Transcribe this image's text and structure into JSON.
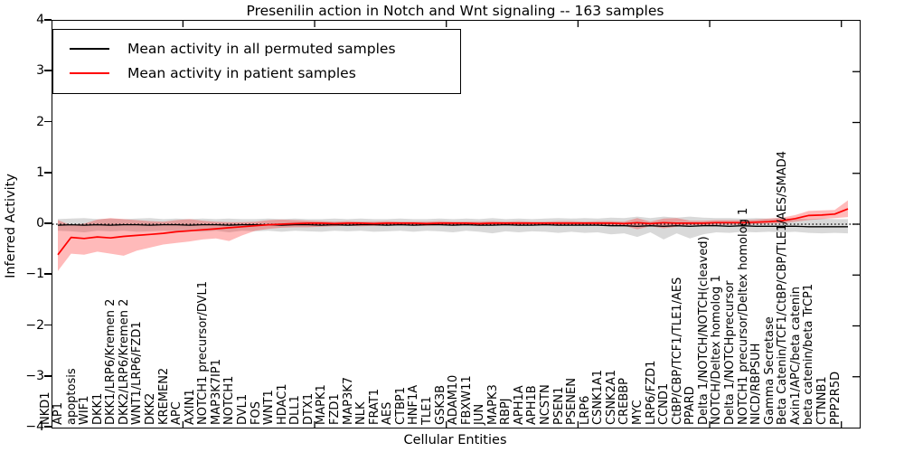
{
  "figure": {
    "title": "Presenilin action in Notch and Wnt signaling -- 163 samples"
  },
  "legend": {
    "entries": [
      {
        "label": "Mean activity in all permuted samples",
        "color": "#000000"
      },
      {
        "label": "Mean activity in patient samples",
        "color": "#ff0000"
      }
    ],
    "position": "upper left"
  },
  "chart_data": {
    "type": "line",
    "title": "Presenilin action in Notch and Wnt signaling -- 163 samples",
    "xlabel": "Cellular Entities",
    "ylabel": "Inferred Activity",
    "ylim": [
      -4,
      4
    ],
    "ytick_labels": [
      "4",
      "3",
      "2",
      "1",
      "0",
      "−1",
      "−2",
      "−3",
      "−4"
    ],
    "ytick_values": [
      4,
      3,
      2,
      1,
      0,
      -1,
      -2,
      -3,
      -4
    ],
    "xtick_positions": [
      9.5,
      19.5,
      29.5,
      39.5,
      49.5,
      59.5
    ],
    "grid": false,
    "zero_reference_line": true,
    "legend_position": "upper left",
    "categories": [
      "NKD1",
      "AP1",
      "apoptosis",
      "WIF1",
      "DKK1",
      "DKK1/LRP6/Kremen 2",
      "DKK2/LRP6/Kremen 2",
      "WNT1/LRP6/FZD1",
      "DKK2",
      "KREMEN2",
      "APC",
      "AXIN1",
      "NOTCH1 precursor/DVL1",
      "MAP3K7IP1",
      "NOTCH1",
      "DVL1",
      "FOS",
      "WNT1",
      "HDAC1",
      "DLL1",
      "DTX1",
      "MAPK1",
      "FZD1",
      "MAP3K7",
      "NLK",
      "FRAT1",
      "AES",
      "CTBP1",
      "HNF1A",
      "TLE1",
      "GSK3B",
      "ADAM10",
      "FBXW11",
      "JUN",
      "MAPK3",
      "RBPJ",
      "APH1A",
      "APH1B",
      "NCSTN",
      "PSEN1",
      "PSENEN",
      "LRP6",
      "CSNK1A1",
      "CSNK2A1",
      "CREBBP",
      "MYC",
      "LRP6/FZD1",
      "CCND1",
      "CtBP/CBP/TCF1/TLE1/AES",
      "PPARD",
      "Delta 1/NOTCH/NOTCH(cleaved)",
      "NOTCH/Deltex homolog 1",
      "Delta 1/NOTCHprecursor",
      "NOTCH1 precursor/Deltex homolog 1",
      "NICD/RBPSUH",
      "Gamma Secretase",
      "Beta Catenin/TCF1/CtBP/CBP/TLE1/AES/SMAD4",
      "Axin1/APC/beta catenin",
      "beta catenin/beta TrCP1",
      "CTNNB1",
      "PPP2R5D"
    ],
    "series": [
      {
        "name": "Mean activity in all permuted samples",
        "color": "#000000",
        "band_opacity": 0.15,
        "values": [
          -0.02,
          -0.01,
          -0.02,
          -0.01,
          -0.02,
          -0.01,
          -0.01,
          -0.02,
          -0.01,
          -0.01,
          -0.02,
          -0.01,
          -0.01,
          -0.02,
          -0.01,
          -0.01,
          -0.01,
          -0.02,
          -0.01,
          -0.01,
          -0.02,
          -0.01,
          -0.02,
          -0.01,
          -0.01,
          -0.02,
          -0.01,
          -0.02,
          -0.01,
          -0.01,
          -0.02,
          -0.01,
          -0.02,
          -0.02,
          -0.01,
          -0.02,
          -0.02,
          -0.01,
          -0.02,
          -0.02,
          -0.02,
          -0.02,
          -0.03,
          -0.03,
          -0.04,
          -0.03,
          -0.04,
          -0.03,
          -0.04,
          -0.03,
          -0.03,
          -0.04,
          -0.03,
          -0.04,
          -0.04,
          -0.04,
          -0.04,
          -0.05,
          -0.05,
          -0.05,
          -0.05
        ],
        "band_hi": [
          0.1,
          0.11,
          0.12,
          0.1,
          0.11,
          0.1,
          0.11,
          0.12,
          0.1,
          0.11,
          0.1,
          0.11,
          0.1,
          0.11,
          0.1,
          0.1,
          0.11,
          0.1,
          0.11,
          0.1,
          0.1,
          0.11,
          0.1,
          0.11,
          0.1,
          0.1,
          0.11,
          0.1,
          0.1,
          0.11,
          0.1,
          0.11,
          0.1,
          0.12,
          0.1,
          0.11,
          0.1,
          0.11,
          0.12,
          0.11,
          0.12,
          0.11,
          0.13,
          0.12,
          0.15,
          0.12,
          0.15,
          0.13,
          0.15,
          0.13,
          0.12,
          0.12,
          0.11,
          0.12,
          0.11,
          0.12,
          0.11,
          0.1,
          0.11,
          0.1,
          0.1
        ],
        "band_lo": [
          -0.13,
          -0.14,
          -0.16,
          -0.13,
          -0.14,
          -0.13,
          -0.15,
          -0.14,
          -0.13,
          -0.14,
          -0.13,
          -0.15,
          -0.13,
          -0.16,
          -0.13,
          -0.14,
          -0.13,
          -0.15,
          -0.13,
          -0.14,
          -0.15,
          -0.13,
          -0.14,
          -0.13,
          -0.15,
          -0.14,
          -0.13,
          -0.15,
          -0.13,
          -0.14,
          -0.16,
          -0.13,
          -0.15,
          -0.18,
          -0.14,
          -0.16,
          -0.14,
          -0.15,
          -0.17,
          -0.15,
          -0.17,
          -0.16,
          -0.2,
          -0.18,
          -0.25,
          -0.16,
          -0.3,
          -0.18,
          -0.28,
          -0.2,
          -0.16,
          -0.17,
          -0.15,
          -0.16,
          -0.15,
          -0.16,
          -0.15,
          -0.17,
          -0.18,
          -0.17,
          -0.18
        ]
      },
      {
        "name": "Mean activity in patient samples",
        "color": "#ff0000",
        "band_opacity": 0.27,
        "values": [
          -0.6,
          -0.26,
          -0.28,
          -0.25,
          -0.27,
          -0.24,
          -0.22,
          -0.2,
          -0.18,
          -0.15,
          -0.13,
          -0.11,
          -0.09,
          -0.07,
          -0.05,
          -0.03,
          -0.01,
          0.0,
          0.01,
          0.02,
          0.02,
          0.01,
          0.02,
          0.02,
          0.01,
          0.02,
          0.02,
          0.02,
          0.01,
          0.02,
          0.02,
          0.02,
          0.01,
          0.02,
          0.02,
          0.02,
          0.02,
          0.02,
          0.02,
          0.02,
          0.02,
          0.02,
          0.02,
          0.01,
          0.03,
          0.01,
          0.03,
          0.02,
          0.02,
          0.02,
          0.03,
          0.03,
          0.03,
          0.04,
          0.05,
          0.07,
          0.11,
          0.17,
          0.18,
          0.2,
          0.3
        ],
        "band_hi": [
          0.08,
          -0.02,
          0.01,
          0.09,
          0.12,
          0.1,
          0.08,
          0.06,
          0.05,
          0.08,
          0.1,
          0.07,
          0.05,
          0.04,
          0.04,
          0.05,
          0.08,
          0.09,
          0.08,
          0.07,
          0.06,
          0.05,
          0.06,
          0.05,
          0.05,
          0.06,
          0.05,
          0.05,
          0.05,
          0.06,
          0.05,
          0.05,
          0.05,
          0.06,
          0.05,
          0.06,
          0.05,
          0.05,
          0.06,
          0.06,
          0.05,
          0.06,
          0.06,
          0.05,
          0.12,
          0.05,
          0.11,
          0.12,
          0.07,
          0.07,
          0.08,
          0.08,
          0.08,
          0.09,
          0.11,
          0.13,
          0.18,
          0.26,
          0.27,
          0.28,
          0.47
        ],
        "band_lo": [
          -0.92,
          -0.58,
          -0.6,
          -0.54,
          -0.58,
          -0.62,
          -0.52,
          -0.46,
          -0.4,
          -0.37,
          -0.34,
          -0.3,
          -0.28,
          -0.33,
          -0.22,
          -0.13,
          -0.09,
          -0.07,
          -0.06,
          -0.06,
          -0.05,
          -0.04,
          -0.03,
          -0.04,
          -0.03,
          -0.03,
          -0.02,
          -0.03,
          -0.03,
          -0.02,
          -0.03,
          -0.02,
          -0.03,
          -0.02,
          -0.02,
          -0.03,
          -0.02,
          -0.02,
          -0.03,
          -0.02,
          -0.02,
          -0.02,
          -0.02,
          -0.03,
          -0.1,
          -0.04,
          -0.08,
          -0.05,
          -0.02,
          -0.02,
          -0.01,
          -0.01,
          -0.01,
          0.0,
          0.01,
          0.02,
          0.05,
          0.08,
          0.1,
          0.12,
          0.14
        ]
      }
    ]
  }
}
